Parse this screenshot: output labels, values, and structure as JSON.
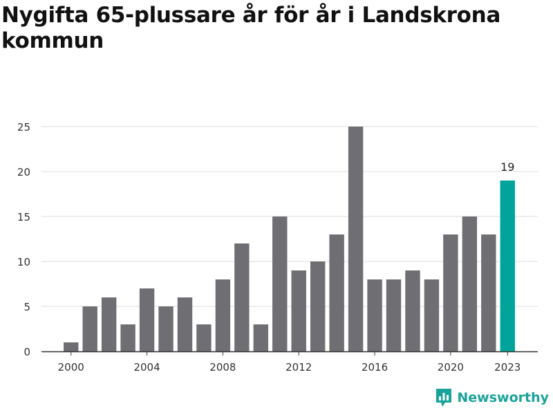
{
  "chart_data": {
    "type": "bar",
    "title": "Nygifta 65-plussare år för år i Landskrona kommun",
    "xlabel": "",
    "ylabel": "",
    "ylim": [
      0,
      25
    ],
    "yticks": [
      0,
      5,
      10,
      15,
      20,
      25
    ],
    "xticks": [
      "2000",
      "2004",
      "2008",
      "2012",
      "2016",
      "2020",
      "2023"
    ],
    "grid": true,
    "categories": [
      "2000",
      "2001",
      "2002",
      "2003",
      "2004",
      "2005",
      "2006",
      "2007",
      "2008",
      "2009",
      "2010",
      "2011",
      "2012",
      "2013",
      "2014",
      "2015",
      "2016",
      "2017",
      "2018",
      "2019",
      "2020",
      "2021",
      "2022",
      "2023"
    ],
    "values": [
      1,
      5,
      6,
      3,
      7,
      5,
      6,
      3,
      8,
      12,
      3,
      15,
      9,
      10,
      13,
      25,
      8,
      8,
      9,
      8,
      13,
      15,
      13,
      19
    ],
    "highlight_index": 23,
    "highlight_label": "19",
    "colors": {
      "bar": "#6f6e73",
      "highlight": "#00a49a",
      "grid": "#dddddd",
      "axis": "#333333",
      "text": "#333333"
    }
  },
  "brand": {
    "name": "Newsworthy",
    "color": "#1aa39a"
  }
}
